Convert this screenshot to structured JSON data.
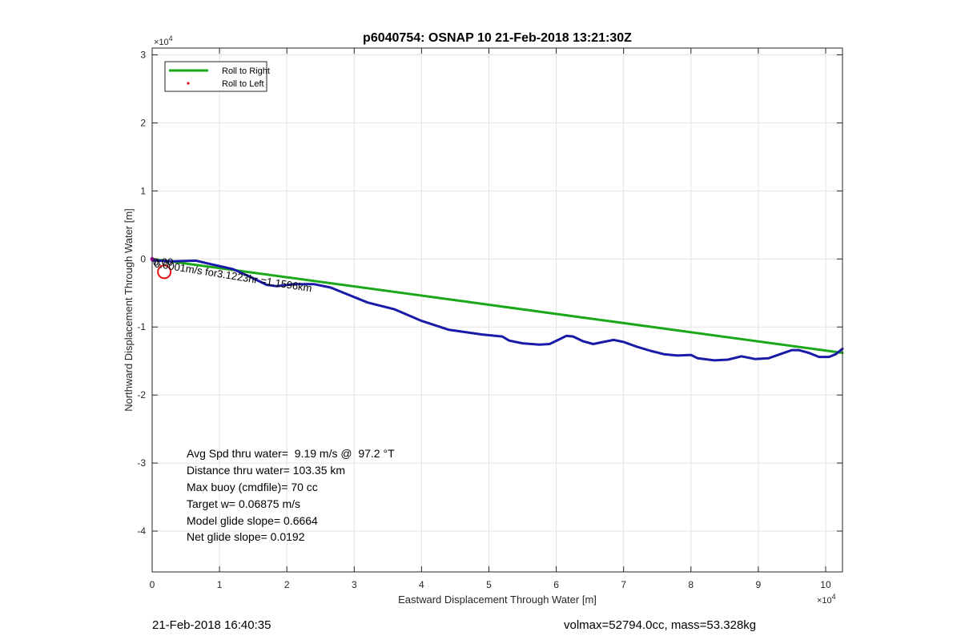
{
  "chart_data": {
    "type": "line",
    "title": "p6040754: OSNAP 10 21-Feb-2018 13:21:30Z",
    "xlabel": "Eastward Displacement Through Water [m]",
    "ylabel": "Northward Displacement Through Water [m]",
    "x_exponent_label": "×10",
    "y_exponent_label": "×10",
    "exponent_power": "4",
    "xlim": [
      0,
      102500
    ],
    "ylim": [
      -46000,
      31000
    ],
    "x_ticks": [
      0,
      10000,
      20000,
      30000,
      40000,
      50000,
      60000,
      70000,
      80000,
      90000,
      100000
    ],
    "x_tick_labels": [
      "0",
      "1",
      "2",
      "3",
      "4",
      "5",
      "6",
      "7",
      "8",
      "9",
      "10"
    ],
    "y_ticks": [
      30000,
      20000,
      10000,
      0,
      -10000,
      -20000,
      -30000,
      -40000
    ],
    "y_tick_labels": [
      "3",
      "2",
      "1",
      "0",
      "-1",
      "-2",
      "-3",
      "-4"
    ],
    "grid": true,
    "legend_position": "top-left",
    "legend": [
      {
        "name": "Roll to Right",
        "color": "#1aa81a",
        "marker": "line"
      },
      {
        "name": "Roll to Left",
        "color": "#e01010",
        "marker": "dot"
      }
    ],
    "series": [
      {
        "name": "Roll to Right",
        "color": "#1aa81a",
        "x": [
          0,
          102500
        ],
        "y": [
          0,
          -13800
        ]
      },
      {
        "name": "",
        "color": "#1a1aa8",
        "x": [
          0,
          3000,
          6500,
          8000,
          12000,
          14500,
          17000,
          18500,
          21000,
          24000,
          26500,
          29000,
          32000,
          36000,
          40000,
          44000,
          49000,
          52000,
          53000,
          55000,
          57500,
          59000,
          60500,
          61500,
          62500,
          64000,
          65500,
          67000,
          68500,
          70000,
          72000,
          74000,
          76000,
          78000,
          80000,
          81000,
          83500,
          85500,
          87500,
          89500,
          91500,
          93500,
          95000,
          96000,
          97500,
          99000,
          100500,
          101500,
          102500
        ],
        "y": [
          -200,
          -350,
          -250,
          -600,
          -1500,
          -2600,
          -3800,
          -4000,
          -3700,
          -3700,
          -4200,
          -5200,
          -6400,
          -7400,
          -9100,
          -10400,
          -11100,
          -11400,
          -12000,
          -12400,
          -12600,
          -12500,
          -11800,
          -11300,
          -11400,
          -12100,
          -12500,
          -12200,
          -11900,
          -12200,
          -12900,
          -13500,
          -14000,
          -14200,
          -14100,
          -14600,
          -14900,
          -14800,
          -14300,
          -14700,
          -14600,
          -13900,
          -13400,
          -13400,
          -13800,
          -14400,
          -14400,
          -14000,
          -13200
        ]
      }
    ],
    "annotations": {
      "start_circle_point": {
        "x": 1800,
        "y": -1900,
        "color": "#e01010"
      },
      "start_label": "0.0001m/s for3.1223hr =1.1596km",
      "start_label_overlap": "0.00",
      "start_point_color": "#cc00cc"
    },
    "stats": [
      "Avg Spd thru water=  9.19 m/s @  97.2 °T",
      "Distance thru water= 103.35 km",
      "Max buoy (cmdfile)= 70 cc",
      "Target w= 0.06875 m/s",
      "Model glide slope= 0.6664",
      "Net glide slope= 0.0192"
    ]
  },
  "footer": {
    "left": "21-Feb-2018 16:40:35",
    "right": "volmax=52794.0cc, mass=53.328kg"
  }
}
